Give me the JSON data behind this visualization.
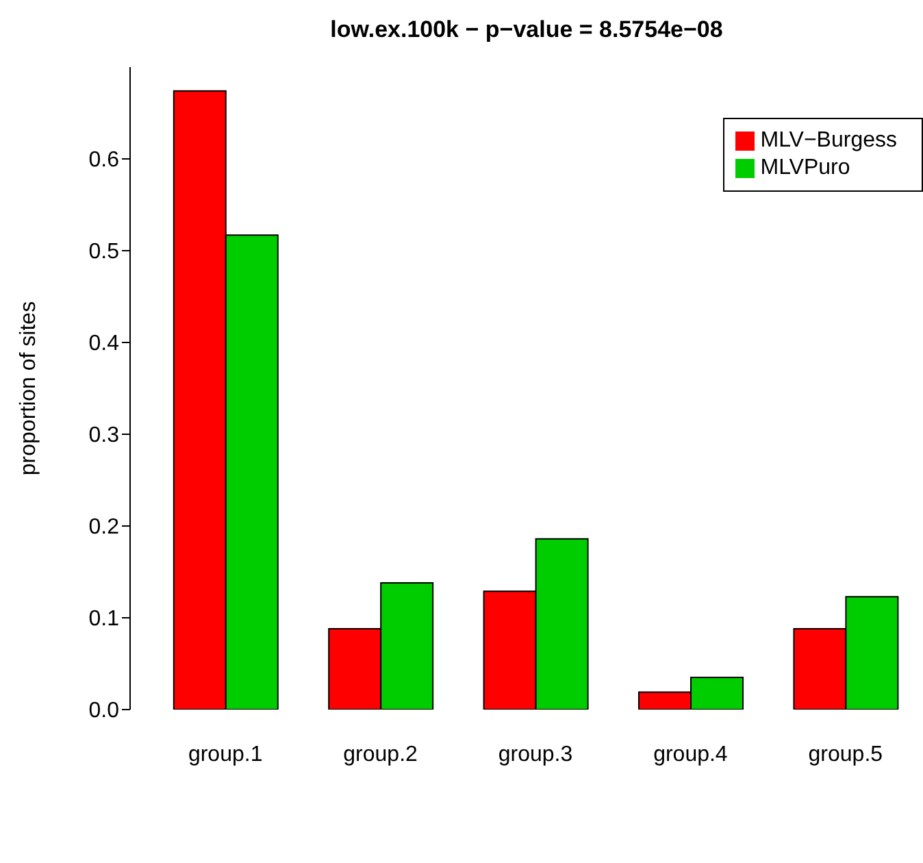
{
  "chart_data": {
    "type": "bar",
    "title": "low.ex.100k  − p−value = 8.5754e−08",
    "ylabel": "proportion of sites",
    "categories": [
      "group.1",
      "group.2",
      "group.3",
      "group.4",
      "group.5"
    ],
    "series": [
      {
        "name": "MLV−Burgess",
        "color": "#ff0000",
        "values": [
          0.674,
          0.088,
          0.129,
          0.019,
          0.088
        ]
      },
      {
        "name": "MLVPuro",
        "color": "#00cd00",
        "values": [
          0.517,
          0.138,
          0.186,
          0.035,
          0.123
        ]
      }
    ],
    "ylim": [
      0,
      0.7
    ],
    "yticks": [
      {
        "value": 0,
        "label": "0.0"
      },
      0.1,
      0.2,
      0.3,
      0.4,
      0.5,
      0.6
    ],
    "grid": false,
    "legend": "top right"
  }
}
